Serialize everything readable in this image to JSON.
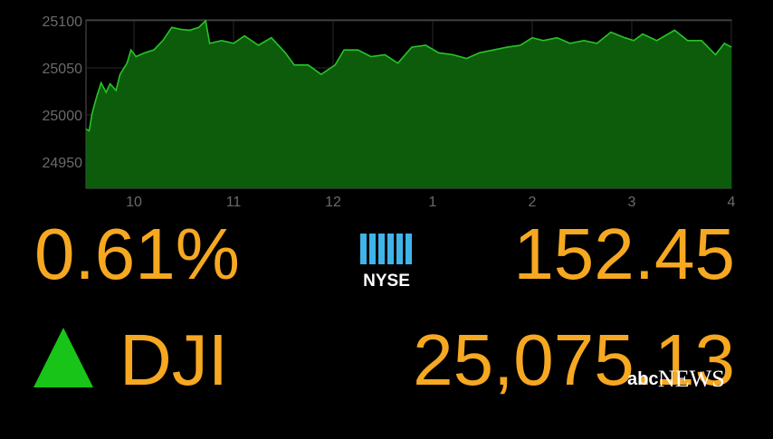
{
  "chart_data": {
    "type": "area",
    "x": [
      9.52,
      9.55,
      9.58,
      9.63,
      9.67,
      9.72,
      9.76,
      9.82,
      9.86,
      9.93,
      9.97,
      10.02,
      10.11,
      10.2,
      10.29,
      10.38,
      10.47,
      10.56,
      10.65,
      10.72,
      10.76,
      10.88,
      11.0,
      11.11,
      11.25,
      11.38,
      11.52,
      11.61,
      11.75,
      11.88,
      12.02,
      12.11,
      12.25,
      12.38,
      12.52,
      12.65,
      12.79,
      12.93,
      13.06,
      13.2,
      13.34,
      13.47,
      13.61,
      13.75,
      13.88,
      14.0,
      14.11,
      14.25,
      14.38,
      14.52,
      14.65,
      14.79,
      14.93,
      15.02,
      15.11,
      15.25,
      15.43,
      15.56,
      15.7,
      15.84,
      15.93,
      16.0
    ],
    "values": [
      24985,
      24983,
      25002,
      25021,
      25034,
      25024,
      25033,
      25026,
      25043,
      25055,
      25069,
      25062,
      25066,
      25069,
      25079,
      25093,
      25091,
      25090,
      25093,
      25100,
      25076,
      25079,
      25076,
      25084,
      25074,
      25082,
      25066,
      25053,
      25053,
      25043,
      25053,
      25069,
      25069,
      25062,
      25064,
      25055,
      25072,
      25074,
      25066,
      25064,
      25060,
      25066,
      25069,
      25072,
      25074,
      25082,
      25079,
      25082,
      25076,
      25079,
      25076,
      25088,
      25082,
      25079,
      25086,
      25079,
      25090,
      25079,
      25079,
      25064,
      25076,
      25072
    ],
    "color": "#27c427",
    "fill_color": "#0c5c0c",
    "xlim": [
      9.5,
      16
    ],
    "xticks": [
      10,
      11,
      12,
      {
        "value": 13,
        "label": "1"
      },
      {
        "value": 14,
        "label": "2"
      },
      {
        "value": 15,
        "label": "3"
      },
      {
        "value": 16,
        "label": "4"
      }
    ],
    "ylim": [
      24922,
      25100
    ],
    "yticks": [
      24950,
      25000,
      25050,
      25100
    ],
    "grid": true
  },
  "ticker": {
    "change_percent": "0.61%",
    "change_points": "152.45",
    "index_name": "DJI",
    "index_value": "25,075.13",
    "exchange": "NYSE"
  },
  "branding": {
    "network": "abc",
    "division": "NEWS"
  }
}
